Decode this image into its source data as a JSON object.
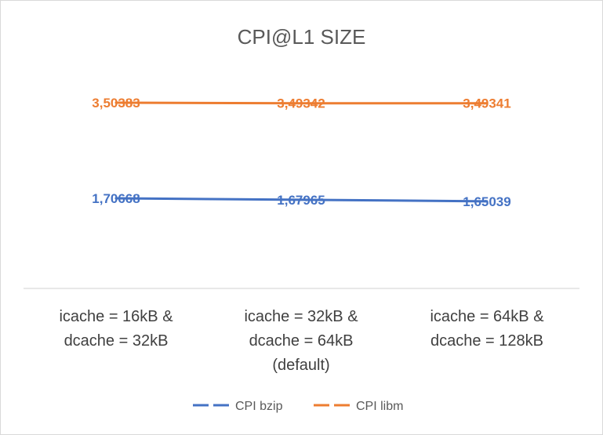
{
  "chart_data": {
    "type": "line",
    "title": "CPI@L1 SIZE",
    "categories": [
      [
        "icache = 16kB &",
        "dcache = 32kB"
      ],
      [
        "icache = 32kB &",
        "dcache = 64kB",
        "(default)"
      ],
      [
        "icache = 64kB &",
        "dcache = 128kB"
      ]
    ],
    "series": [
      {
        "name": "CPI bzip",
        "color": "#4472c4",
        "values": [
          1.70668,
          1.67965,
          1.65039
        ],
        "labels": [
          "1,70668",
          "1,67965",
          "1,65039"
        ]
      },
      {
        "name": "CPI libm",
        "color": "#ed7d31",
        "values": [
          3.50383,
          3.49342,
          3.49341
        ],
        "labels": [
          "3,50383",
          "3,49342",
          "3,49341"
        ]
      }
    ],
    "grid": false,
    "legend": "bottom"
  }
}
